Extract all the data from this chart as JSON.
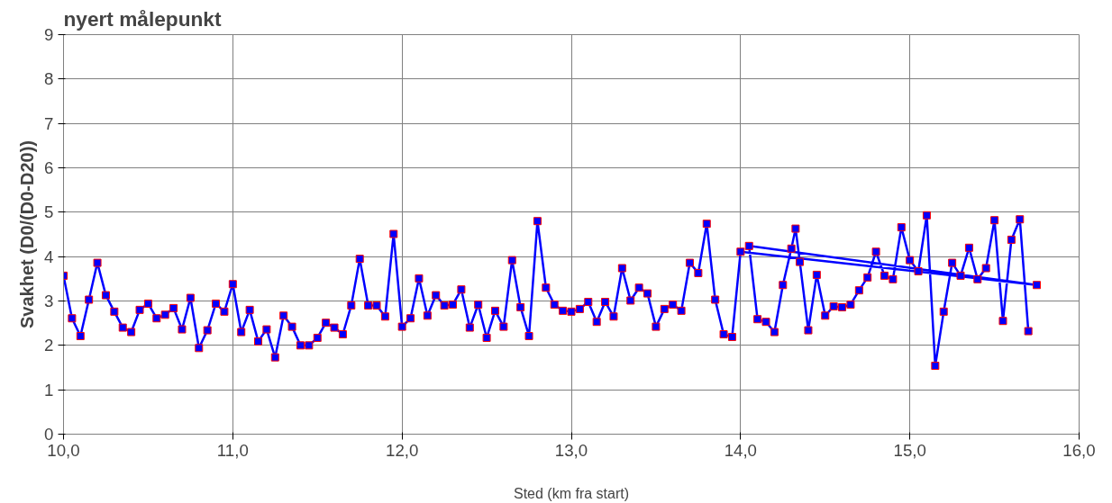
{
  "chart_data": {
    "type": "line",
    "title": "nyert målepunkt",
    "xlabel": "Sted (km fra start)",
    "ylabel": "Svakhet (D0/(D0-D20))",
    "xlim": [
      10,
      16
    ],
    "ylim": [
      0,
      9
    ],
    "xticks": [
      {
        "value": 10,
        "label": "10,0"
      },
      {
        "value": 11,
        "label": "11,0"
      },
      {
        "value": 12,
        "label": "12,0"
      },
      {
        "value": 13,
        "label": "13,0"
      },
      {
        "value": 14,
        "label": "14,0"
      },
      {
        "value": 15,
        "label": "15,0"
      },
      {
        "value": 16,
        "label": "16,0"
      }
    ],
    "yticks": [
      0,
      1,
      2,
      3,
      4,
      5,
      6,
      7,
      8,
      9
    ],
    "grid": true,
    "marker": "square",
    "line_style": "solid",
    "series": [
      {
        "color": "#0000ff",
        "x": [
          10.0,
          10.05,
          10.1,
          10.15,
          10.2,
          10.25,
          10.3,
          10.35,
          10.4,
          10.45,
          10.5,
          10.55,
          10.6,
          10.65,
          10.7,
          10.75,
          10.8,
          10.85,
          10.9,
          10.95,
          11.0,
          11.05,
          11.1,
          11.15,
          11.2,
          11.25,
          11.3,
          11.35,
          11.4,
          11.45,
          11.5,
          11.55,
          11.6,
          11.65,
          11.7,
          11.75,
          11.8,
          11.85,
          11.9,
          11.95,
          12.0,
          12.05,
          12.1,
          12.15,
          12.2,
          12.25,
          12.3,
          12.35,
          12.4,
          12.45,
          12.5,
          12.55,
          12.6,
          12.65,
          12.7,
          12.75,
          12.8,
          12.85,
          12.9,
          12.95,
          13.0,
          13.05,
          13.1,
          13.15,
          13.2,
          13.25,
          13.3,
          13.35,
          13.4,
          13.45,
          13.5,
          13.55,
          13.6,
          13.65,
          13.7,
          13.75,
          13.8,
          13.85,
          13.9,
          13.95,
          14.0,
          15.75,
          14.05,
          14.1,
          14.15,
          14.2,
          14.25,
          14.3,
          14.325,
          14.35,
          14.4,
          14.45,
          14.5,
          14.55,
          14.6,
          14.65,
          14.7,
          14.75,
          14.8,
          14.85,
          14.9,
          14.95,
          15.0,
          15.05,
          15.1,
          15.15,
          15.2,
          15.25,
          15.3,
          15.35,
          15.4,
          15.45,
          15.5,
          15.55,
          15.6,
          15.65,
          15.7
        ],
        "values": [
          3.57,
          2.61,
          2.21,
          3.03,
          3.86,
          3.13,
          2.76,
          2.4,
          2.3,
          2.8,
          2.94,
          2.61,
          2.69,
          2.84,
          2.36,
          3.07,
          1.94,
          2.34,
          2.94,
          2.76,
          3.38,
          2.3,
          2.8,
          2.09,
          2.36,
          1.73,
          2.67,
          2.42,
          2.0,
          2.0,
          2.17,
          2.51,
          2.4,
          2.25,
          2.9,
          3.95,
          2.9,
          2.9,
          2.65,
          4.51,
          2.42,
          2.61,
          3.51,
          2.67,
          3.13,
          2.9,
          2.92,
          3.26,
          2.4,
          2.92,
          2.17,
          2.78,
          2.42,
          3.92,
          2.86,
          2.21,
          4.8,
          3.3,
          2.92,
          2.78,
          2.76,
          2.82,
          2.98,
          2.53,
          2.98,
          2.65,
          3.74,
          3.01,
          3.3,
          3.17,
          2.42,
          2.82,
          2.92,
          2.78,
          3.86,
          3.63,
          4.74,
          3.03,
          2.25,
          2.19,
          4.11,
          3.36,
          4.24,
          2.59,
          2.53,
          2.3,
          3.36,
          4.18,
          4.63,
          3.88,
          2.34,
          3.59,
          2.67,
          2.88,
          2.86,
          2.92,
          3.24,
          3.53,
          4.11,
          3.57,
          3.49,
          4.66,
          3.92,
          3.67,
          4.93,
          1.54,
          2.76,
          3.86,
          3.57,
          4.2,
          3.49,
          3.74,
          4.82,
          2.55,
          4.38,
          4.84,
          2.32
        ]
      }
    ]
  }
}
